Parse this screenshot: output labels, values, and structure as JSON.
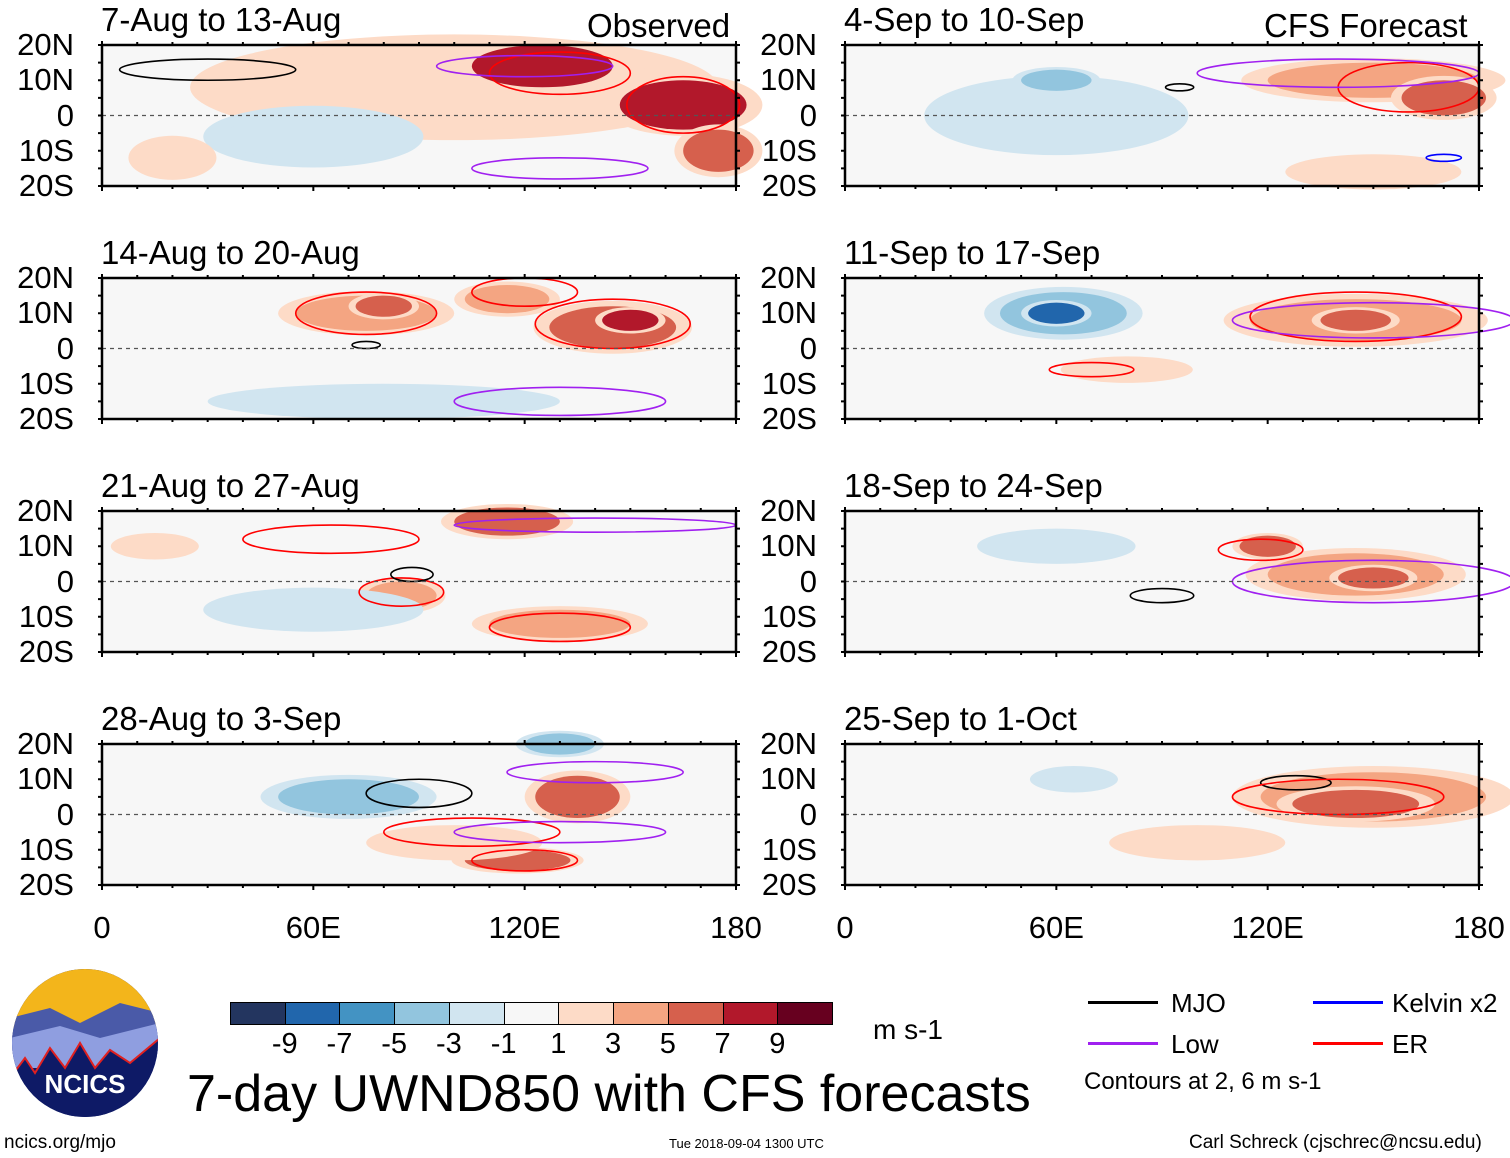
{
  "title": "7-day UWND850 with CFS forecasts",
  "observed_label": "Observed",
  "forecast_label": "CFS Forecast",
  "footer": {
    "left": "ncics.org/mjo",
    "center": "Tue 2018-09-04 1300 UTC",
    "right": "Carl Schreck (cjschrec@ncsu.edu)"
  },
  "logo_text": "NCICS",
  "colorbar": {
    "unit": "m s-1",
    "ticks": [
      "-9",
      "-7",
      "-5",
      "-3",
      "-1",
      "1",
      "3",
      "5",
      "7",
      "9"
    ],
    "colors": [
      "#23355f",
      "#2166ac",
      "#4393c3",
      "#92c5de",
      "#d1e5f0",
      "#f7f7f7",
      "#fddbc7",
      "#f4a582",
      "#d6604d",
      "#b2182b",
      "#67001f"
    ],
    "levels": [
      -9,
      -7,
      -5,
      -3,
      -1,
      1,
      3,
      5,
      7,
      9
    ]
  },
  "legend": {
    "items": [
      {
        "label": "MJO",
        "color": "#000000"
      },
      {
        "label": "Kelvin x2",
        "color": "#0000ff"
      },
      {
        "label": "Low",
        "color": "#a020f0"
      },
      {
        "label": "ER",
        "color": "#ff0000"
      }
    ],
    "note": "Contours at 2, 6 m s-1"
  },
  "chart_data": {
    "type": "heatmap",
    "variable": "850-hPa zonal wind anomaly",
    "xlim": [
      0,
      180
    ],
    "ylim": [
      -20,
      20
    ],
    "xticks": [
      "0",
      "60E",
      "120E",
      "180"
    ],
    "xtick_values": [
      0,
      60,
      120,
      180
    ],
    "yticks": [
      "20N",
      "10N",
      "0",
      "10S",
      "20S"
    ],
    "ytick_values": [
      20,
      10,
      0,
      -10,
      -20
    ],
    "panels": [
      {
        "title": "7-Aug to 13-Aug",
        "column": "observed",
        "anoms": [
          [
            100,
            8,
            60,
            12,
            3
          ],
          [
            60,
            -6,
            25,
            7,
            -3
          ],
          [
            125,
            14,
            20,
            6,
            9
          ],
          [
            165,
            3,
            18,
            7,
            9
          ],
          [
            175,
            -10,
            10,
            6,
            7
          ],
          [
            20,
            -12,
            10,
            5,
            3
          ]
        ],
        "contours": [
          [
            30,
            13,
            25,
            3,
            "#000000"
          ],
          [
            130,
            12,
            20,
            6,
            "#ff0000"
          ],
          [
            165,
            3,
            16,
            8,
            "#ff0000"
          ],
          [
            120,
            14,
            25,
            3,
            "#a020f0"
          ],
          [
            130,
            -15,
            25,
            3,
            "#a020f0"
          ]
        ]
      },
      {
        "title": "14-Aug to 20-Aug",
        "column": "observed",
        "anoms": [
          [
            75,
            10,
            20,
            5,
            5
          ],
          [
            80,
            12,
            8,
            3,
            7
          ],
          [
            145,
            6,
            18,
            6,
            7
          ],
          [
            150,
            8,
            8,
            3,
            9
          ],
          [
            115,
            14,
            12,
            4,
            5
          ],
          [
            80,
            -15,
            40,
            4,
            -3
          ]
        ],
        "contours": [
          [
            75,
            10,
            20,
            6,
            "#ff0000"
          ],
          [
            145,
            7,
            22,
            7,
            "#ff0000"
          ],
          [
            120,
            16,
            15,
            4,
            "#ff0000"
          ],
          [
            130,
            -15,
            30,
            4,
            "#a020f0"
          ],
          [
            75,
            1,
            4,
            1,
            "#000000"
          ]
        ]
      },
      {
        "title": "21-Aug to 27-Aug",
        "column": "observed",
        "anoms": [
          [
            115,
            17,
            15,
            4,
            7
          ],
          [
            85,
            -4,
            10,
            4,
            5
          ],
          [
            130,
            -12,
            20,
            4,
            5
          ],
          [
            60,
            -8,
            25,
            5,
            -1
          ],
          [
            15,
            10,
            10,
            3,
            3
          ]
        ],
        "contours": [
          [
            65,
            12,
            25,
            4,
            "#ff0000"
          ],
          [
            85,
            -3,
            12,
            4,
            "#ff0000"
          ],
          [
            130,
            -13,
            20,
            4,
            "#ff0000"
          ],
          [
            88,
            2,
            6,
            2,
            "#000000"
          ],
          [
            140,
            16,
            40,
            2,
            "#a020f0"
          ]
        ]
      },
      {
        "title": "28-Aug to 3-Sep",
        "column": "observed",
        "anoms": [
          [
            135,
            5,
            12,
            6,
            7
          ],
          [
            118,
            -13,
            15,
            3,
            7
          ],
          [
            70,
            5,
            20,
            5,
            -5
          ],
          [
            130,
            20,
            10,
            3,
            -5
          ],
          [
            100,
            -8,
            20,
            4,
            3
          ]
        ],
        "contours": [
          [
            90,
            6,
            15,
            4,
            "#000000"
          ],
          [
            105,
            -5,
            25,
            4,
            "#ff0000"
          ],
          [
            120,
            -13,
            15,
            3,
            "#ff0000"
          ],
          [
            130,
            -5,
            30,
            3,
            "#a020f0"
          ],
          [
            140,
            12,
            25,
            3,
            "#a020f0"
          ]
        ]
      },
      {
        "title": "4-Sep to 10-Sep",
        "column": "forecast",
        "anoms": [
          [
            60,
            0,
            30,
            9,
            -3
          ],
          [
            60,
            10,
            10,
            3,
            -5
          ],
          [
            150,
            10,
            30,
            5,
            5
          ],
          [
            170,
            5,
            12,
            5,
            7
          ],
          [
            150,
            -16,
            20,
            4,
            3
          ]
        ],
        "contours": [
          [
            160,
            8,
            20,
            7,
            "#ff0000"
          ],
          [
            140,
            12,
            40,
            4,
            "#a020f0"
          ],
          [
            170,
            -12,
            5,
            1,
            "#0000ff"
          ],
          [
            95,
            8,
            4,
            1,
            "#000000"
          ]
        ]
      },
      {
        "title": "11-Sep to 17-Sep",
        "column": "forecast",
        "anoms": [
          [
            62,
            10,
            18,
            6,
            -5
          ],
          [
            60,
            10,
            8,
            3,
            -9
          ],
          [
            145,
            8,
            30,
            6,
            5
          ],
          [
            145,
            8,
            10,
            3,
            7
          ],
          [
            80,
            -6,
            15,
            3,
            3
          ]
        ],
        "contours": [
          [
            145,
            9,
            30,
            7,
            "#ff0000"
          ],
          [
            70,
            -6,
            12,
            2,
            "#ff0000"
          ],
          [
            150,
            8,
            40,
            5,
            "#a020f0"
          ]
        ]
      },
      {
        "title": "18-Sep to 24-Sep",
        "column": "forecast",
        "anoms": [
          [
            60,
            10,
            18,
            4,
            -3
          ],
          [
            145,
            2,
            25,
            6,
            5
          ],
          [
            150,
            1,
            10,
            3,
            7
          ],
          [
            120,
            10,
            8,
            3,
            7
          ]
        ],
        "contours": [
          [
            118,
            9,
            12,
            3,
            "#ff0000"
          ],
          [
            90,
            -4,
            9,
            2,
            "#000000"
          ],
          [
            150,
            0,
            40,
            6,
            "#a020f0"
          ]
        ]
      },
      {
        "title": "25-Sep to 1-Oct",
        "column": "forecast",
        "anoms": [
          [
            150,
            5,
            32,
            7,
            5
          ],
          [
            145,
            3,
            18,
            4,
            7
          ],
          [
            65,
            10,
            10,
            3,
            -3
          ],
          [
            100,
            -8,
            20,
            4,
            1
          ]
        ],
        "contours": [
          [
            128,
            9,
            10,
            2,
            "#000000"
          ],
          [
            140,
            5,
            30,
            5,
            "#ff0000"
          ]
        ]
      }
    ]
  }
}
